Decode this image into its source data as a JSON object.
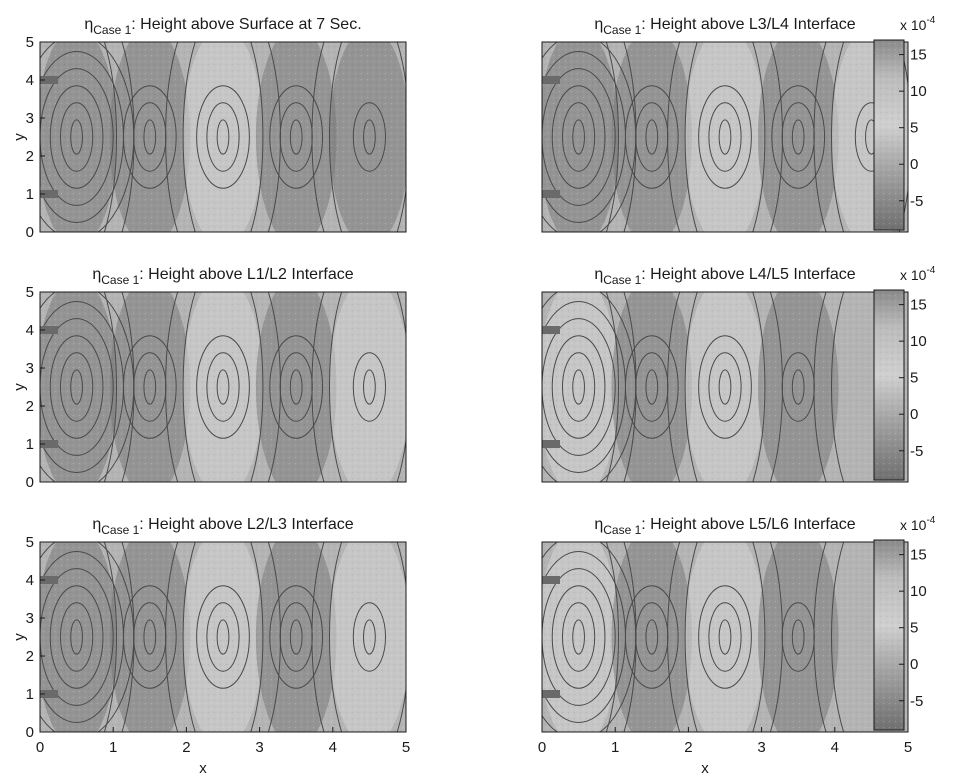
{
  "chart_data": [
    {
      "type": "contour",
      "title_symbol": "η",
      "title_subscript": "Case 1",
      "title_text": ": Height above Surface at 7 Sec.",
      "xlabel": "",
      "ylabel": "y",
      "xlim": [
        0,
        5
      ],
      "ylim": [
        0,
        5
      ],
      "xticks": [],
      "yticks": [
        "0",
        "1",
        "2",
        "3",
        "4",
        "5"
      ],
      "colorbar": false,
      "extremum_centers": [
        {
          "x": 0.5,
          "y": 2.5,
          "sign": "negative"
        },
        {
          "x": 1.5,
          "y": 2.5,
          "sign": "negative"
        },
        {
          "x": 2.5,
          "y": 2.5,
          "sign": "positive"
        },
        {
          "x": 3.5,
          "y": 2.5,
          "sign": "negative"
        },
        {
          "x": 4.5,
          "y": 2.5,
          "sign": "negative"
        }
      ]
    },
    {
      "type": "contour",
      "title_symbol": "η",
      "title_subscript": "Case 1",
      "title_text": ": Height above L3/L4 Interface",
      "xlabel": "",
      "ylabel": "",
      "xlim": [
        0,
        5
      ],
      "ylim": [
        0,
        5
      ],
      "xticks": [],
      "yticks": [],
      "colorbar": true,
      "colorbar_multiplier_base": "x 10",
      "colorbar_multiplier_exp": "-4",
      "colorbar_ticks": [
        "15",
        "10",
        "5",
        "0",
        "-5"
      ],
      "colorbar_range": [
        -9,
        17
      ],
      "extremum_centers": [
        {
          "x": 0.5,
          "y": 2.5,
          "sign": "negative"
        },
        {
          "x": 1.5,
          "y": 2.5,
          "sign": "negative"
        },
        {
          "x": 2.5,
          "y": 2.5,
          "sign": "positive"
        },
        {
          "x": 3.5,
          "y": 2.5,
          "sign": "negative"
        },
        {
          "x": 4.5,
          "y": 2.5,
          "sign": "positive"
        }
      ]
    },
    {
      "type": "contour",
      "title_symbol": "η",
      "title_subscript": "Case 1",
      "title_text": ": Height above L1/L2 Interface",
      "xlabel": "",
      "ylabel": "y",
      "xlim": [
        0,
        5
      ],
      "ylim": [
        0,
        5
      ],
      "xticks": [],
      "yticks": [
        "0",
        "1",
        "2",
        "3",
        "4",
        "5"
      ],
      "colorbar": false,
      "extremum_centers": [
        {
          "x": 0.5,
          "y": 2.5,
          "sign": "negative"
        },
        {
          "x": 1.5,
          "y": 2.5,
          "sign": "negative"
        },
        {
          "x": 2.5,
          "y": 2.5,
          "sign": "positive"
        },
        {
          "x": 3.5,
          "y": 2.5,
          "sign": "negative"
        },
        {
          "x": 4.5,
          "y": 2.5,
          "sign": "positive"
        }
      ]
    },
    {
      "type": "contour",
      "title_symbol": "η",
      "title_subscript": "Case 1",
      "title_text": ": Height above L4/L5 Interface",
      "xlabel": "",
      "ylabel": "",
      "xlim": [
        0,
        5
      ],
      "ylim": [
        0,
        5
      ],
      "xticks": [],
      "yticks": [],
      "colorbar": true,
      "colorbar_multiplier_base": "x 10",
      "colorbar_multiplier_exp": "-4",
      "colorbar_ticks": [
        "15",
        "10",
        "5",
        "0",
        "-5"
      ],
      "colorbar_range": [
        -9,
        17
      ],
      "extremum_centers": [
        {
          "x": 0.5,
          "y": 2.5,
          "sign": "positive"
        },
        {
          "x": 1.5,
          "y": 2.5,
          "sign": "negative"
        },
        {
          "x": 2.5,
          "y": 2.5,
          "sign": "positive"
        },
        {
          "x": 3.5,
          "y": 2.5,
          "sign": "negative"
        }
      ]
    },
    {
      "type": "contour",
      "title_symbol": "η",
      "title_subscript": "Case 1",
      "title_text": ": Height above L2/L3 Interface",
      "xlabel": "x",
      "ylabel": "y",
      "xlim": [
        0,
        5
      ],
      "ylim": [
        0,
        5
      ],
      "xticks": [
        "0",
        "1",
        "2",
        "3",
        "4",
        "5"
      ],
      "yticks": [
        "0",
        "1",
        "2",
        "3",
        "4",
        "5"
      ],
      "colorbar": false,
      "extremum_centers": [
        {
          "x": 0.5,
          "y": 2.5,
          "sign": "negative"
        },
        {
          "x": 1.5,
          "y": 2.5,
          "sign": "negative"
        },
        {
          "x": 2.5,
          "y": 2.5,
          "sign": "positive"
        },
        {
          "x": 3.5,
          "y": 2.5,
          "sign": "negative"
        },
        {
          "x": 4.5,
          "y": 2.5,
          "sign": "positive"
        }
      ]
    },
    {
      "type": "contour",
      "title_symbol": "η",
      "title_subscript": "Case 1",
      "title_text": ": Height above L5/L6 Interface",
      "xlabel": "x",
      "ylabel": "",
      "xlim": [
        0,
        5
      ],
      "ylim": [
        0,
        5
      ],
      "xticks": [
        "0",
        "1",
        "2",
        "3",
        "4",
        "5"
      ],
      "yticks": [],
      "colorbar": true,
      "colorbar_multiplier_base": "x 10",
      "colorbar_multiplier_exp": "-4",
      "colorbar_ticks": [
        "15",
        "10",
        "5",
        "0",
        "-5"
      ],
      "colorbar_range": [
        -9,
        17
      ],
      "extremum_centers": [
        {
          "x": 0.5,
          "y": 2.5,
          "sign": "positive"
        },
        {
          "x": 1.5,
          "y": 2.5,
          "sign": "negative"
        },
        {
          "x": 2.5,
          "y": 2.5,
          "sign": "positive"
        },
        {
          "x": 3.5,
          "y": 2.5,
          "sign": "negative"
        }
      ]
    }
  ],
  "colors": {
    "background": "#ffffff",
    "field_base": "#b4b4b4",
    "field_dark": "#7a7a7a",
    "field_light": "#d6d6d6",
    "contour": "#4a4a4a",
    "axis": "#1a1a1a"
  }
}
